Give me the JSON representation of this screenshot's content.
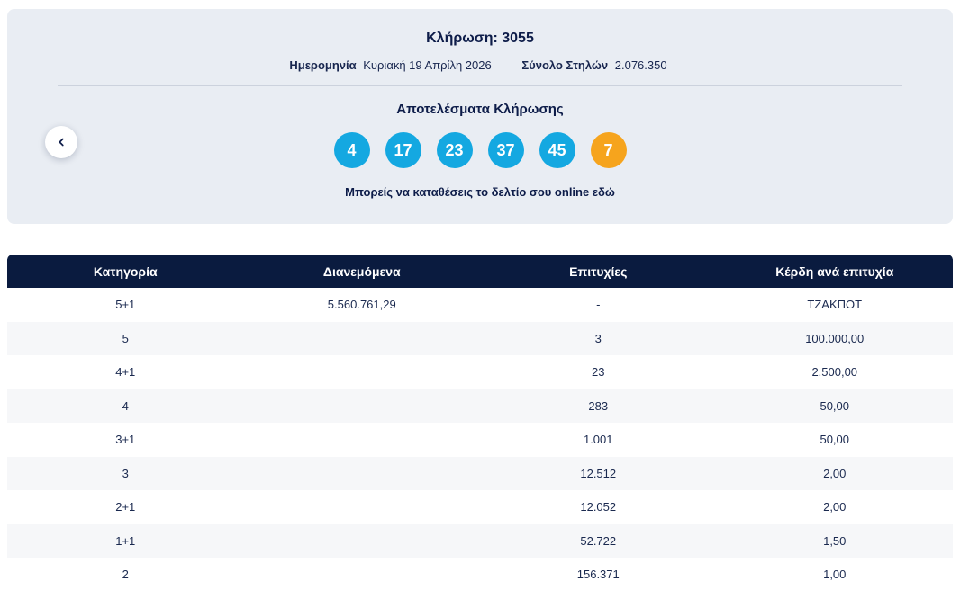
{
  "colors": {
    "navy": "#0a1b3f",
    "cyan": "#14a8e1",
    "orange": "#f6a41d",
    "card_bg": "#e9edf3"
  },
  "draw": {
    "title": "Κλήρωση: 3055",
    "date_label": "Ημερομηνία",
    "date_value": "Κυριακή 19 Απρίλη 2026",
    "columns_label": "Σύνολο Στηλών",
    "columns_value": "2.076.350",
    "results_title": "Αποτελέσματα Κλήρωσης",
    "numbers": [
      "4",
      "17",
      "23",
      "37",
      "45"
    ],
    "joker": "7",
    "cta_prefix": "Μπορείς να καταθέσεις το δελτίο σου online",
    "cta_link": "εδώ"
  },
  "table": {
    "headers": [
      "Κατηγορία",
      "Διανεμόμενα",
      "Επιτυχίες",
      "Κέρδη ανά επιτυχία"
    ],
    "rows": [
      [
        "5+1",
        "5.560.761,29",
        "-",
        "ΤΖΑΚΠΟΤ"
      ],
      [
        "5",
        "",
        "3",
        "100.000,00"
      ],
      [
        "4+1",
        "",
        "23",
        "2.500,00"
      ],
      [
        "4",
        "",
        "283",
        "50,00"
      ],
      [
        "3+1",
        "",
        "1.001",
        "50,00"
      ],
      [
        "3",
        "",
        "12.512",
        "2,00"
      ],
      [
        "2+1",
        "",
        "12.052",
        "2,00"
      ],
      [
        "1+1",
        "",
        "52.722",
        "1,50"
      ],
      [
        "2",
        "",
        "156.371",
        "1,00"
      ]
    ]
  }
}
